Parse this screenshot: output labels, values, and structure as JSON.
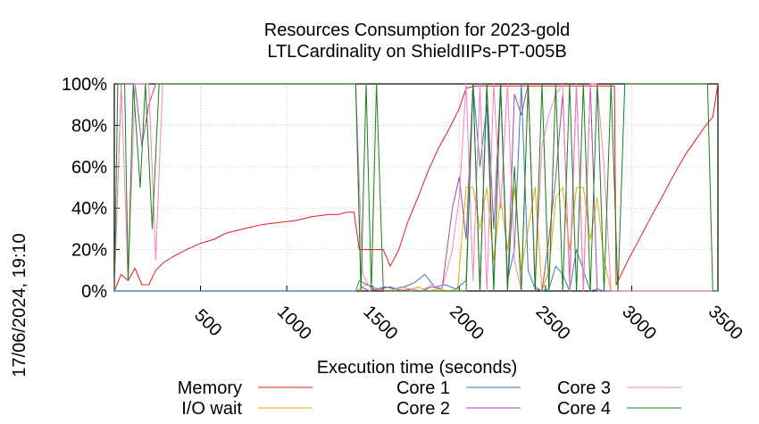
{
  "chart_data": {
    "type": "line",
    "title": [
      "Resources Consumption for 2023-gold",
      "LTLCardinality on ShieldIIPs-PT-005B"
    ],
    "xlabel": "Execution time (seconds)",
    "ylabel": "",
    "side_label": "17/06/2024, 19:10",
    "xlim": [
      0,
      3500
    ],
    "ylim": [
      0,
      100
    ],
    "x_ticks": [
      500,
      1000,
      1500,
      2000,
      2500,
      3000,
      3500
    ],
    "y_ticks": [
      0,
      20,
      40,
      60,
      80,
      100
    ],
    "y_tick_labels": [
      "0%",
      "20%",
      "40%",
      "60%",
      "80%",
      "100%"
    ],
    "grid": true,
    "legend_position": "bottom",
    "series": [
      {
        "name": "Memory",
        "color": "#e41a1c",
        "points": [
          [
            0,
            0
          ],
          [
            40,
            8
          ],
          [
            80,
            5
          ],
          [
            120,
            11
          ],
          [
            160,
            3
          ],
          [
            200,
            3
          ],
          [
            240,
            10
          ],
          [
            290,
            14
          ],
          [
            350,
            17
          ],
          [
            420,
            20
          ],
          [
            500,
            23
          ],
          [
            580,
            25
          ],
          [
            650,
            28
          ],
          [
            750,
            30
          ],
          [
            850,
            32
          ],
          [
            950,
            33
          ],
          [
            1050,
            34
          ],
          [
            1150,
            36
          ],
          [
            1250,
            37
          ],
          [
            1300,
            37
          ],
          [
            1350,
            38
          ],
          [
            1390,
            38
          ],
          [
            1420,
            20
          ],
          [
            1500,
            20
          ],
          [
            1560,
            20
          ],
          [
            1600,
            12
          ],
          [
            1650,
            20
          ],
          [
            1700,
            33
          ],
          [
            1760,
            45
          ],
          [
            1820,
            58
          ],
          [
            1880,
            69
          ],
          [
            1940,
            78
          ],
          [
            2000,
            88
          ],
          [
            2040,
            98
          ],
          [
            2100,
            99
          ],
          [
            2300,
            99
          ],
          [
            2600,
            99
          ],
          [
            2900,
            99
          ],
          [
            2910,
            3
          ],
          [
            2980,
            15
          ],
          [
            3050,
            26
          ],
          [
            3120,
            37
          ],
          [
            3180,
            46
          ],
          [
            3250,
            57
          ],
          [
            3320,
            67
          ],
          [
            3380,
            74
          ],
          [
            3430,
            80
          ],
          [
            3470,
            84
          ],
          [
            3500,
            100
          ]
        ]
      },
      {
        "name": "I/O wait",
        "color": "#e6ab02",
        "points": [
          [
            0,
            0
          ],
          [
            1400,
            0
          ],
          [
            1460,
            3
          ],
          [
            1520,
            1
          ],
          [
            1580,
            0
          ],
          [
            1640,
            1
          ],
          [
            1700,
            0
          ],
          [
            1760,
            2
          ],
          [
            1820,
            0
          ],
          [
            1880,
            1
          ],
          [
            1940,
            0
          ],
          [
            1990,
            1
          ],
          [
            2040,
            50
          ],
          [
            2080,
            50
          ],
          [
            2120,
            30
          ],
          [
            2160,
            50
          ],
          [
            2200,
            15
          ],
          [
            2240,
            45
          ],
          [
            2280,
            20
          ],
          [
            2320,
            50
          ],
          [
            2360,
            10
          ],
          [
            2400,
            30
          ],
          [
            2440,
            50
          ],
          [
            2480,
            0
          ],
          [
            2520,
            10
          ],
          [
            2560,
            45
          ],
          [
            2600,
            50
          ],
          [
            2640,
            20
          ],
          [
            2680,
            50
          ],
          [
            2720,
            50
          ],
          [
            2760,
            25
          ],
          [
            2800,
            45
          ],
          [
            2840,
            15
          ],
          [
            2880,
            0
          ],
          [
            3500,
            0
          ]
        ]
      },
      {
        "name": "Core 1",
        "color": "#377eb8",
        "points": [
          [
            0,
            0
          ],
          [
            1400,
            0
          ],
          [
            1420,
            5
          ],
          [
            1470,
            3
          ],
          [
            1520,
            1
          ],
          [
            1570,
            2
          ],
          [
            1620,
            1
          ],
          [
            1680,
            2
          ],
          [
            1740,
            4
          ],
          [
            1800,
            8
          ],
          [
            1860,
            2
          ],
          [
            1920,
            3
          ],
          [
            1980,
            1
          ],
          [
            2040,
            5
          ],
          [
            2080,
            100
          ],
          [
            2120,
            60
          ],
          [
            2160,
            90
          ],
          [
            2200,
            2
          ],
          [
            2240,
            100
          ],
          [
            2280,
            5
          ],
          [
            2320,
            20
          ],
          [
            2360,
            100
          ],
          [
            2400,
            10
          ],
          [
            2440,
            1
          ],
          [
            2480,
            0
          ],
          [
            2520,
            1
          ],
          [
            2560,
            12
          ],
          [
            2600,
            8
          ],
          [
            2640,
            0
          ],
          [
            2680,
            20
          ],
          [
            2720,
            10
          ],
          [
            2760,
            0
          ],
          [
            2800,
            1
          ],
          [
            2840,
            0
          ],
          [
            3500,
            0
          ]
        ]
      },
      {
        "name": "Core 2",
        "color": "#984ea3",
        "points": [
          [
            0,
            0
          ],
          [
            40,
            100
          ],
          [
            80,
            100
          ],
          [
            120,
            100
          ],
          [
            160,
            70
          ],
          [
            200,
            90
          ],
          [
            240,
            100
          ],
          [
            1400,
            100
          ],
          [
            1430,
            2
          ],
          [
            1480,
            0
          ],
          [
            1540,
            1
          ],
          [
            1600,
            2
          ],
          [
            1660,
            0
          ],
          [
            1720,
            1
          ],
          [
            1780,
            0
          ],
          [
            1840,
            2
          ],
          [
            1900,
            1
          ],
          [
            1960,
            40
          ],
          [
            2000,
            55
          ],
          [
            2040,
            25
          ],
          [
            2080,
            100
          ],
          [
            2120,
            0
          ],
          [
            2160,
            100
          ],
          [
            2200,
            30
          ],
          [
            2240,
            100
          ],
          [
            2280,
            0
          ],
          [
            2320,
            95
          ],
          [
            2360,
            85
          ],
          [
            2400,
            100
          ],
          [
            2440,
            2
          ],
          [
            2480,
            0
          ],
          [
            2520,
            25
          ],
          [
            2560,
            55
          ],
          [
            2600,
            95
          ],
          [
            2640,
            5
          ],
          [
            2680,
            100
          ],
          [
            2720,
            0
          ],
          [
            2760,
            100
          ],
          [
            2800,
            0
          ],
          [
            2840,
            0
          ],
          [
            3500,
            0
          ]
        ]
      },
      {
        "name": "Core 3",
        "color": "#f781bf",
        "points": [
          [
            0,
            0
          ],
          [
            40,
            100
          ],
          [
            80,
            5
          ],
          [
            120,
            100
          ],
          [
            160,
            100
          ],
          [
            200,
            100
          ],
          [
            240,
            15
          ],
          [
            280,
            100
          ],
          [
            1400,
            100
          ],
          [
            1440,
            8
          ],
          [
            1480,
            2
          ],
          [
            1540,
            1
          ],
          [
            1600,
            0
          ],
          [
            1660,
            2
          ],
          [
            1720,
            1
          ],
          [
            1780,
            0
          ],
          [
            1840,
            3
          ],
          [
            1900,
            1
          ],
          [
            1960,
            20
          ],
          [
            2000,
            45
          ],
          [
            2040,
            100
          ],
          [
            2080,
            5
          ],
          [
            2120,
            100
          ],
          [
            2160,
            0
          ],
          [
            2200,
            100
          ],
          [
            2240,
            40
          ],
          [
            2280,
            100
          ],
          [
            2320,
            15
          ],
          [
            2360,
            0
          ],
          [
            2400,
            100
          ],
          [
            2440,
            5
          ],
          [
            2480,
            70
          ],
          [
            2520,
            85
          ],
          [
            2560,
            95
          ],
          [
            2600,
            100
          ],
          [
            2640,
            0
          ],
          [
            2680,
            100
          ],
          [
            2720,
            0
          ],
          [
            2760,
            100
          ],
          [
            2800,
            100
          ],
          [
            2840,
            60
          ],
          [
            2880,
            0
          ],
          [
            3500,
            0
          ]
        ]
      },
      {
        "name": "Core 4",
        "color": "#1b7e1b",
        "points": [
          [
            0,
            0
          ],
          [
            20,
            100
          ],
          [
            60,
            100
          ],
          [
            80,
            5
          ],
          [
            110,
            100
          ],
          [
            150,
            50
          ],
          [
            180,
            100
          ],
          [
            220,
            30
          ],
          [
            260,
            100
          ],
          [
            1400,
            100
          ],
          [
            1430,
            0
          ],
          [
            1460,
            100
          ],
          [
            1490,
            0
          ],
          [
            1520,
            100
          ],
          [
            1560,
            0
          ],
          [
            2040,
            0
          ],
          [
            2080,
            100
          ],
          [
            2120,
            0
          ],
          [
            2160,
            100
          ],
          [
            2200,
            0
          ],
          [
            2240,
            100
          ],
          [
            2280,
            0
          ],
          [
            2320,
            60
          ],
          [
            2360,
            0
          ],
          [
            2400,
            100
          ],
          [
            2440,
            0
          ],
          [
            2480,
            100
          ],
          [
            2520,
            0
          ],
          [
            2560,
            100
          ],
          [
            2600,
            0
          ],
          [
            2640,
            100
          ],
          [
            2680,
            0
          ],
          [
            2720,
            100
          ],
          [
            2760,
            0
          ],
          [
            2800,
            100
          ],
          [
            2840,
            0
          ],
          [
            2880,
            100
          ],
          [
            2920,
            0
          ],
          [
            2960,
            100
          ],
          [
            3000,
            100
          ],
          [
            3400,
            100
          ],
          [
            3440,
            100
          ],
          [
            3470,
            0
          ],
          [
            3500,
            0
          ]
        ]
      }
    ]
  }
}
